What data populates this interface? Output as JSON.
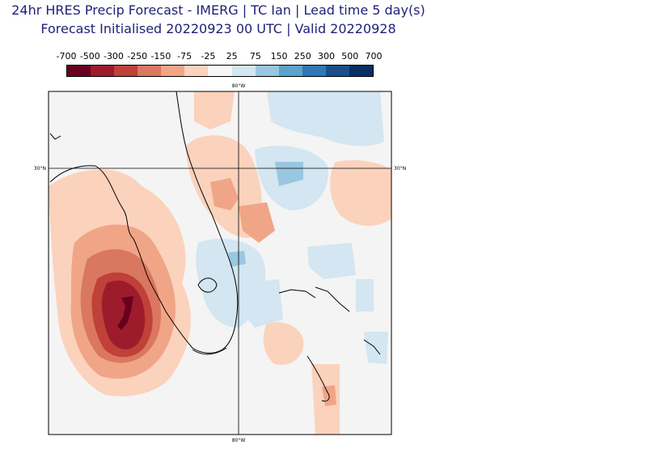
{
  "title_line1": "24hr HRES Precip Forecast - IMERG | TC Ian | Lead time 5 day(s)",
  "title_line2": "Forecast Initialised 20220923 00 UTC | Valid 20220928",
  "colorbar": {
    "ticks": [
      "-700",
      "-500",
      "-300",
      "-250",
      "-150",
      "-75",
      "-25",
      "25",
      "75",
      "150",
      "250",
      "300",
      "500",
      "700"
    ],
    "colors": [
      "#67001f",
      "#9e1b2c",
      "#c0403a",
      "#da7761",
      "#f0a587",
      "#fbd2bc",
      "#f7f7f7",
      "#d3e6f1",
      "#99c7e0",
      "#5ba2cd",
      "#2f77b5",
      "#1a4f8c",
      "#053061"
    ]
  },
  "map": {
    "lon_label_top": "80°W",
    "lon_label_bottom": "80°W",
    "lat_label_left": "30°N",
    "lat_label_right": "30°N"
  }
}
